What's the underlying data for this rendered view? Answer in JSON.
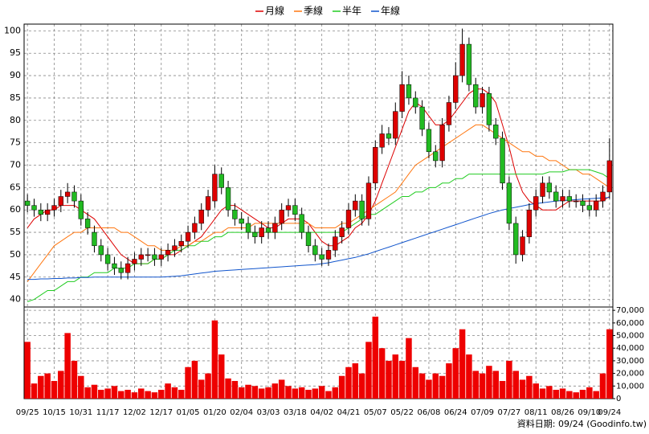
{
  "chart_data": {
    "type": "candlestick",
    "footer": "資料日期: 09/24 (Goodinfo.tw)",
    "legend": "top",
    "grid": true,
    "up_color": "#dd0000",
    "down_color": "#22bb22",
    "volume_color": "#ee0000",
    "categories": [
      "09/25",
      null,
      null,
      null,
      "10/15",
      null,
      null,
      null,
      "10/31",
      null,
      null,
      null,
      "11/17",
      null,
      null,
      null,
      "12/02",
      null,
      null,
      null,
      "12/17",
      null,
      null,
      null,
      "01/05",
      null,
      null,
      null,
      "01/20",
      null,
      null,
      null,
      "02/04",
      null,
      null,
      null,
      "03/03",
      null,
      null,
      null,
      "03/18",
      null,
      null,
      null,
      "04/02",
      null,
      null,
      null,
      "04/21",
      null,
      null,
      null,
      "05/07",
      null,
      null,
      null,
      "05/22",
      null,
      null,
      null,
      "06/08",
      null,
      null,
      null,
      "06/24",
      null,
      null,
      null,
      "07/09",
      null,
      null,
      null,
      "07/27",
      null,
      null,
      null,
      "08/11",
      null,
      null,
      null,
      "08/26",
      null,
      null,
      null,
      "09/10",
      null,
      null,
      "09/24"
    ],
    "open": [
      62,
      61,
      60,
      59,
      60,
      61,
      63,
      64,
      62,
      58,
      55,
      52,
      50,
      48,
      47,
      46,
      48,
      49,
      50,
      50,
      49,
      50,
      51,
      52,
      53,
      55,
      57,
      60,
      62,
      68,
      65,
      60,
      58,
      57,
      55,
      54,
      56,
      55,
      57,
      60,
      61,
      59,
      55,
      52,
      50,
      49,
      51,
      54,
      56,
      60,
      62,
      58,
      66,
      74,
      77,
      76,
      82,
      88,
      85,
      83,
      78,
      73,
      71,
      79,
      84,
      90,
      97,
      88,
      83,
      86,
      79,
      76,
      66,
      57,
      50,
      54,
      60,
      63,
      66,
      64,
      62,
      63,
      62,
      62,
      61,
      60,
      62,
      64
    ],
    "high": [
      63.5,
      62.5,
      61.5,
      61.5,
      62.5,
      64.5,
      66,
      65.5,
      63.5,
      59.5,
      56.5,
      53.5,
      51.5,
      49.5,
      48.5,
      49.5,
      50.5,
      51.5,
      51.5,
      51.5,
      51.5,
      52.5,
      53.5,
      54.5,
      56.5,
      58.5,
      61.5,
      64.5,
      70,
      69.5,
      66.5,
      61.5,
      59.5,
      58.5,
      56.5,
      57.5,
      57.5,
      58.5,
      61.5,
      62.5,
      62.5,
      60.5,
      56.5,
      53.5,
      51.5,
      52.5,
      55.5,
      57.5,
      61.5,
      63.5,
      63.5,
      67.5,
      75.5,
      79,
      78.5,
      84,
      91,
      90,
      86.5,
      84.5,
      79.5,
      74.5,
      80.5,
      85.5,
      93,
      100.5,
      98.5,
      89.5,
      87.5,
      87.5,
      80.5,
      77.5,
      67.5,
      58.5,
      55.5,
      61.5,
      64.5,
      67.5,
      67.5,
      65.5,
      64.5,
      64.5,
      63.5,
      63.5,
      62.5,
      63.5,
      65.5,
      76
    ],
    "low": [
      59.5,
      58.5,
      57.5,
      57.5,
      58.5,
      59.5,
      61.5,
      60.5,
      56.5,
      54.5,
      50.5,
      48.5,
      46.5,
      45.5,
      44.5,
      44.5,
      46.5,
      47.5,
      48.5,
      47.5,
      47.5,
      48.5,
      49.5,
      50.5,
      51.5,
      53.5,
      55.5,
      58.5,
      60.5,
      63.5,
      58.5,
      56.5,
      55.5,
      53.5,
      52.5,
      52.5,
      53.5,
      53.5,
      55.5,
      58.5,
      57.5,
      53.5,
      50.5,
      48.5,
      47.5,
      47.5,
      49.5,
      52.5,
      54.5,
      58.5,
      56.5,
      56.5,
      64.5,
      72.5,
      74.5,
      74.5,
      80.5,
      83.5,
      81.5,
      76.5,
      71.5,
      69.5,
      69.5,
      77.5,
      82.5,
      88.5,
      86.5,
      81.5,
      81.5,
      77.5,
      74.5,
      64.5,
      55.5,
      48,
      48.5,
      52.5,
      58.5,
      61.5,
      62.5,
      60.5,
      60.5,
      60.5,
      60.5,
      59.5,
      58.5,
      58.5,
      60.5,
      62.5
    ],
    "close": [
      61,
      60,
      59,
      60,
      61,
      63,
      64,
      62,
      58,
      56,
      52,
      50,
      48,
      47,
      46,
      48,
      49,
      50,
      50,
      49,
      50,
      51,
      52,
      53,
      55,
      57,
      60,
      63,
      68,
      65,
      60,
      58,
      57,
      55,
      54,
      56,
      55,
      57,
      60,
      61,
      59,
      55,
      52,
      50,
      49,
      51,
      54,
      56,
      60,
      62,
      58,
      66,
      74,
      77,
      76,
      82,
      88,
      85,
      83,
      78,
      73,
      71,
      79,
      84,
      90,
      97,
      88,
      83,
      86,
      79,
      76,
      66,
      57,
      50,
      54,
      60,
      63,
      66,
      64,
      62,
      63,
      62,
      62,
      61,
      60,
      62,
      64,
      71
    ],
    "volume": [
      45000,
      12000,
      18000,
      20000,
      14000,
      22000,
      52000,
      30000,
      18000,
      9000,
      11000,
      7000,
      8000,
      10000,
      6000,
      7000,
      5000,
      8000,
      6000,
      5000,
      7000,
      12000,
      9000,
      7000,
      25000,
      30000,
      15000,
      20000,
      62000,
      35000,
      16000,
      14000,
      9000,
      11000,
      10000,
      8000,
      9000,
      12000,
      15000,
      10000,
      8000,
      9000,
      7000,
      8000,
      10000,
      6000,
      9000,
      18000,
      25000,
      28000,
      20000,
      45000,
      65000,
      40000,
      30000,
      35000,
      30000,
      48000,
      25000,
      20000,
      15000,
      20000,
      18000,
      28000,
      40000,
      55000,
      35000,
      22000,
      20000,
      26000,
      22000,
      14000,
      30000,
      22000,
      15000,
      18000,
      12000,
      8000,
      10000,
      7000,
      8000,
      6000,
      5000,
      7000,
      9000,
      6000,
      20000,
      55000
    ],
    "series": [
      {
        "name": "月線",
        "color": "#dd0000",
        "values": [
          56,
          58,
          59,
          60,
          60,
          61,
          61,
          61,
          60,
          59,
          58,
          56,
          54,
          52,
          50,
          49,
          48,
          48,
          48,
          49,
          49,
          50,
          50,
          51,
          52,
          53,
          54,
          56,
          58,
          60,
          61,
          61,
          60,
          59,
          58,
          57,
          56,
          56,
          57,
          58,
          58,
          58,
          57,
          55,
          53,
          52,
          52,
          53,
          54,
          56,
          57,
          59,
          62,
          66,
          70,
          74,
          78,
          82,
          84,
          83,
          81,
          79,
          79,
          80,
          82,
          84,
          86,
          87,
          87,
          86,
          84,
          79,
          74,
          68,
          64,
          62,
          61,
          60,
          60,
          60,
          61,
          62,
          62,
          62,
          62,
          62,
          62,
          63
        ]
      },
      {
        "name": "季線",
        "color": "#ff7711",
        "values": [
          44,
          46,
          48,
          50,
          52,
          53,
          54,
          55,
          55,
          56,
          56,
          56,
          56,
          56,
          55,
          55,
          54,
          53,
          52,
          52,
          51,
          51,
          51,
          52,
          52,
          53,
          53,
          54,
          55,
          55,
          56,
          56,
          56,
          56,
          57,
          57,
          57,
          57,
          57,
          57,
          57,
          57,
          57,
          56,
          56,
          56,
          56,
          57,
          57,
          58,
          59,
          60,
          61,
          62,
          63,
          64,
          66,
          68,
          70,
          71,
          72,
          73,
          74,
          75,
          76,
          77,
          78,
          79,
          79,
          78,
          77,
          76,
          75,
          74,
          73,
          73,
          72,
          72,
          71,
          71,
          70,
          69,
          69,
          68,
          68,
          67,
          66,
          65
        ]
      },
      {
        "name": "半年",
        "color": "#22cc22",
        "values": [
          39.5,
          40,
          41,
          42,
          42,
          43,
          44,
          44,
          45,
          45,
          46,
          46,
          46,
          47,
          47,
          47,
          48,
          48,
          48,
          49,
          49,
          50,
          51,
          51,
          52,
          52,
          53,
          53,
          54,
          54,
          55,
          55,
          55,
          55,
          55,
          55,
          55,
          55,
          55,
          55,
          55,
          55,
          55,
          55,
          55,
          55,
          55,
          55,
          56,
          57,
          58,
          59,
          59,
          60,
          61,
          62,
          63,
          63,
          64,
          64,
          65,
          65,
          66,
          66,
          67,
          67,
          68,
          68,
          68,
          68,
          68,
          68,
          68,
          68,
          68,
          68,
          68,
          68,
          68.5,
          68.5,
          68.5,
          69,
          69,
          69,
          69,
          68.5,
          68,
          67
        ]
      },
      {
        "name": "年線",
        "color": "#1155cc",
        "values": [
          44.5,
          44.5,
          44.6,
          44.6,
          44.7,
          44.7,
          44.8,
          44.8,
          44.9,
          44.9,
          45,
          45,
          45,
          45,
          45,
          45,
          45,
          45,
          45,
          45,
          45,
          45.1,
          45.2,
          45.3,
          45.5,
          45.7,
          45.9,
          46.1,
          46.3,
          46.4,
          46.5,
          46.6,
          46.7,
          46.8,
          46.9,
          47,
          47.1,
          47.2,
          47.3,
          47.4,
          47.5,
          47.6,
          47.7,
          47.8,
          48,
          48.2,
          48.5,
          48.8,
          49.1,
          49.4,
          49.8,
          50.2,
          50.7,
          51.2,
          51.7,
          52.2,
          52.7,
          53.2,
          53.7,
          54.2,
          54.7,
          55.2,
          55.7,
          56.2,
          56.7,
          57.2,
          57.7,
          58.2,
          58.7,
          59.2,
          59.6,
          60,
          60.3,
          60.6,
          60.9,
          61.2,
          61.4,
          61.6,
          61.8,
          62,
          62.1,
          62.2,
          62.3,
          62.4,
          62.5,
          62.6,
          62.7,
          62.8
        ]
      }
    ],
    "ylim": [
      38.5,
      101.5
    ],
    "yticks": [
      40,
      45,
      50,
      55,
      60,
      65,
      70,
      75,
      80,
      85,
      90,
      95,
      100
    ],
    "y2lim": [
      0,
      72000
    ],
    "y2ticks": [
      0,
      {
        "value": 10000,
        "label": "10,000"
      },
      {
        "value": 20000,
        "label": "20,000"
      },
      {
        "value": 30000,
        "label": "30,000"
      },
      {
        "value": 40000,
        "label": "40,000"
      },
      {
        "value": 50000,
        "label": "50,000"
      },
      {
        "value": 60000,
        "label": "60,000"
      },
      {
        "value": 70000,
        "label": "70,000"
      }
    ]
  }
}
